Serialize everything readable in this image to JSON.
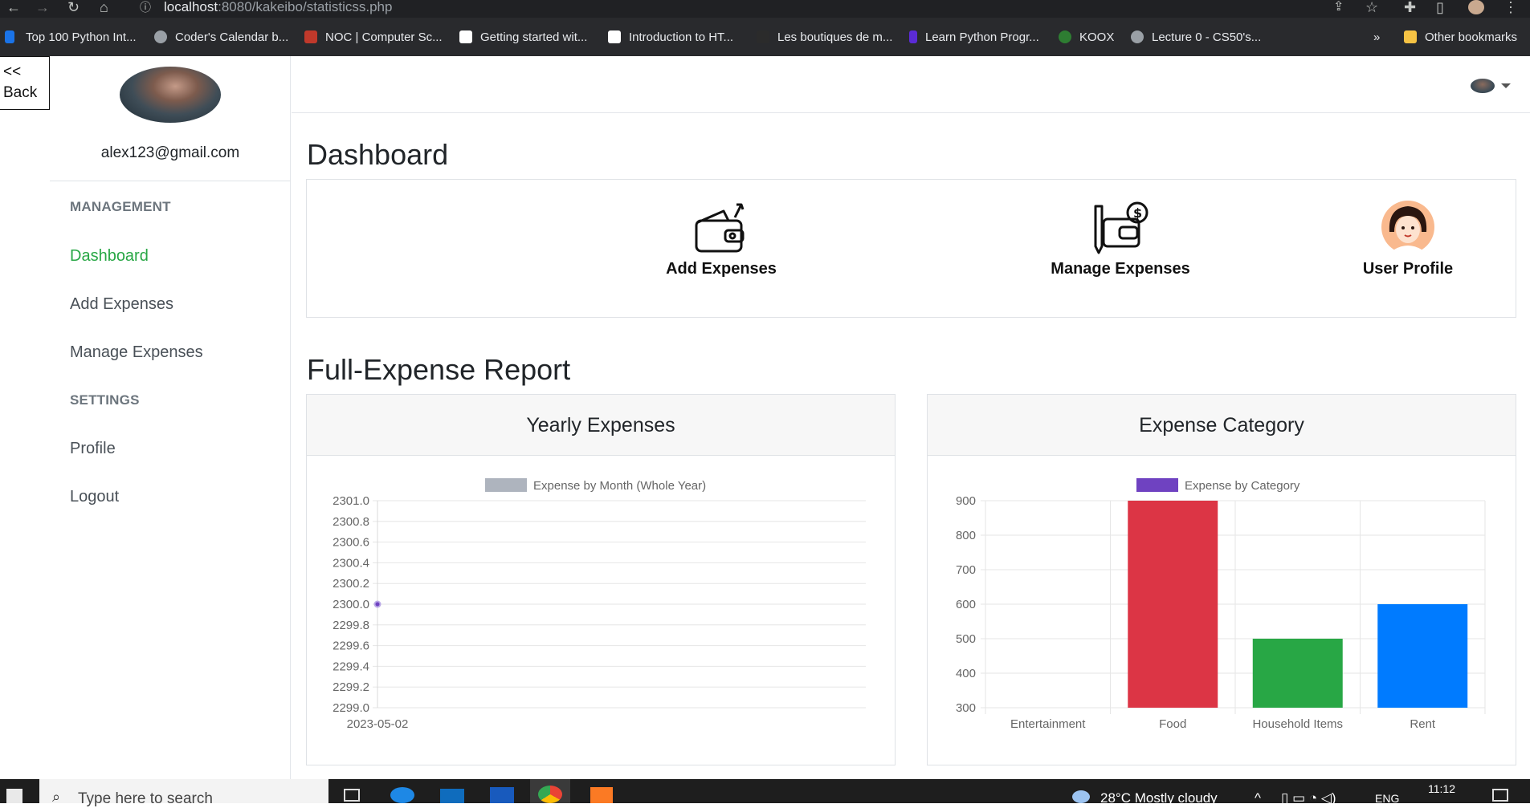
{
  "browser": {
    "url_host": "localhost",
    "url_rest": ":8080/kakeibo/statisticss.php",
    "bookmarks": [
      {
        "label": "Top 100 Python Int...",
        "color": "#1a73e8"
      },
      {
        "label": "Coder's Calendar b...",
        "color": "#9aa0a6"
      },
      {
        "label": "NOC | Computer Sc...",
        "color": "#c0392b"
      },
      {
        "label": "Getting started wit...",
        "color": "#ffffff"
      },
      {
        "label": "Introduction to HT...",
        "color": "#ffffff"
      },
      {
        "label": "Les boutiques de m...",
        "color": "#2b2b2b"
      },
      {
        "label": "Learn Python Progr...",
        "color": "#5b2bd6"
      },
      {
        "label": "KOOX",
        "color": "#2e7d32"
      },
      {
        "label": "Lecture 0 - CS50's...",
        "color": "#9aa0a6"
      }
    ],
    "more": "»",
    "other_bookmarks": "Other bookmarks"
  },
  "sidebar": {
    "back_line1": "<<",
    "back_line2": "Back",
    "email": "alex123@gmail.com",
    "management_heading": "MANAGEMENT",
    "settings_heading": "SETTINGS",
    "links": {
      "dashboard": "Dashboard",
      "add_expenses": "Add Expenses",
      "manage_expenses": "Manage Expenses",
      "profile": "Profile",
      "logout": "Logout"
    }
  },
  "main": {
    "dashboard_title": "Dashboard",
    "cards": {
      "add": "Add Expenses",
      "manage": "Manage Expenses",
      "profile": "User Profile"
    },
    "report_title": "Full-Expense Report",
    "yearly_title": "Yearly Expenses",
    "category_title": "Expense Category"
  },
  "chart_data": [
    {
      "type": "line",
      "legend": "Expense by Month (Whole Year)",
      "x": [
        "2023-05-02"
      ],
      "values": [
        2300
      ],
      "ylim": [
        2299.0,
        2301.0
      ],
      "yticks": [
        "2301.0",
        "2300.8",
        "2300.6",
        "2300.4",
        "2300.2",
        "2300.0",
        "2299.8",
        "2299.6",
        "2299.4",
        "2299.2",
        "2299.0"
      ],
      "legend_color": "#aeb4be",
      "point_color": "#6f42c1",
      "grid": true,
      "legend_position": "top"
    },
    {
      "type": "bar",
      "legend": "Expense by Category",
      "categories": [
        "Entertainment",
        "Food",
        "Household Items",
        "Rent"
      ],
      "values": [
        300,
        900,
        500,
        600
      ],
      "colors": [
        "#6f42c1",
        "#dc3545",
        "#28a745",
        "#007bff"
      ],
      "legend_color": "#6f42c1",
      "ylim": [
        300,
        900
      ],
      "yticks": [
        "900",
        "800",
        "700",
        "600",
        "500",
        "400",
        "300"
      ],
      "grid": true,
      "legend_position": "top"
    }
  ],
  "taskbar": {
    "search_placeholder": "Type here to search",
    "weather": "28°C  Mostly cloudy",
    "lang": "ENG",
    "time": "11:12"
  }
}
